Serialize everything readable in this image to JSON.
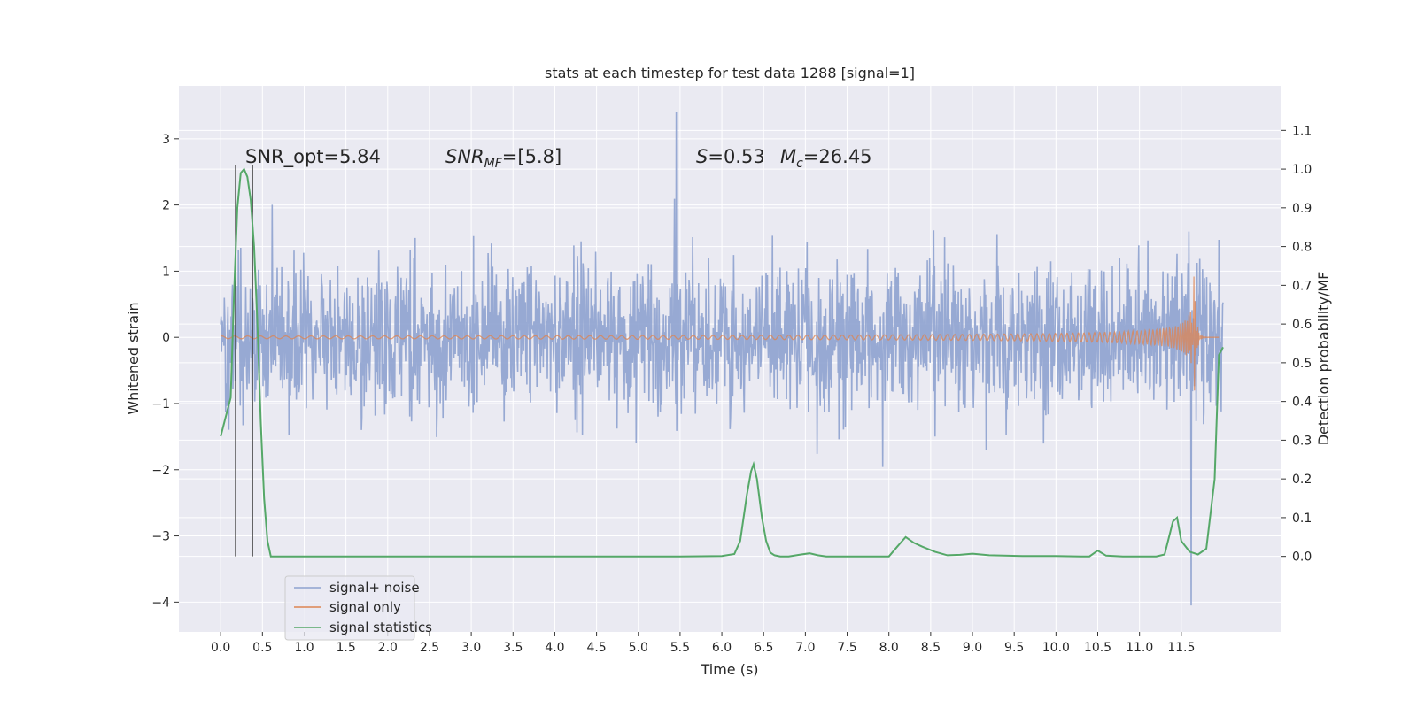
{
  "chart_data": {
    "type": "line",
    "title": "stats at each timestep for test data 1288 [signal=1]",
    "xlabel": "Time (s)",
    "ylabel_left": "Whitened strain",
    "ylabel_right": "Detection probability/MF",
    "xlim": [
      -0.5,
      12.7
    ],
    "ylim_left": [
      -4.45,
      3.8
    ],
    "ylim_right": [
      -0.195,
      1.215
    ],
    "x_ticks": [
      "0.0",
      "0.5",
      "1.0",
      "1.5",
      "2.0",
      "2.5",
      "3.0",
      "3.5",
      "4.0",
      "4.5",
      "5.0",
      "5.5",
      "6.0",
      "6.5",
      "7.0",
      "7.5",
      "8.0",
      "8.5",
      "9.0",
      "9.5",
      "10.0",
      "10.5",
      "11.0",
      "11.5"
    ],
    "y_ticks_left": [
      "3",
      "2",
      "1",
      "0",
      "−1",
      "−2",
      "−3",
      "−4"
    ],
    "y_ticks_right": [
      "1.1",
      "1.0",
      "0.9",
      "0.8",
      "0.7",
      "0.6",
      "0.5",
      "0.4",
      "0.3",
      "0.2",
      "0.1",
      "0.0"
    ],
    "grid": true,
    "legend_position": "lower-left",
    "legend": [
      "signal+ noise",
      "signal only",
      "signal statistics"
    ],
    "colors": {
      "signal_noise": "#8ea2cf",
      "signal_only": "#dd8452",
      "statistics": "#55a868",
      "background": "#eaeaf2",
      "grid": "#ffffff",
      "vlines": "#404040"
    },
    "annotations": {
      "snr_opt": "SNR_opt=5.84",
      "snr_mf_base": "SNR",
      "snr_mf_sub": "MF",
      "snr_mf_rest": "=[5.8]",
      "s_base": "S",
      "s_rest": "=0.53",
      "mc_base": "M",
      "mc_sub": "c",
      "mc_rest": "=26.45"
    },
    "signal_noise": {
      "x_range": [
        0.0,
        12.0
      ],
      "band_typical": [
        -1.45,
        1.45
      ],
      "peak_max": 3.4,
      "peak_min": -4.05
    },
    "signal_only": {
      "x_range": [
        0.0,
        11.95
      ],
      "chirp_peak_time": 11.65,
      "max_amplitude": 1.1
    },
    "vlines_x": [
      0.18,
      0.38
    ],
    "series": [
      {
        "name": "signal statistics",
        "axis": "right",
        "x": [
          0.0,
          0.12,
          0.16,
          0.2,
          0.24,
          0.28,
          0.32,
          0.36,
          0.4,
          0.44,
          0.48,
          0.52,
          0.56,
          0.6,
          0.65,
          0.7,
          1.5,
          3.0,
          4.5,
          5.5,
          6.0,
          6.15,
          6.22,
          6.3,
          6.35,
          6.38,
          6.42,
          6.48,
          6.53,
          6.58,
          6.63,
          6.7,
          6.8,
          6.95,
          7.05,
          7.15,
          7.25,
          7.4,
          7.7,
          8.0,
          8.1,
          8.2,
          8.3,
          8.4,
          8.55,
          8.7,
          8.85,
          9.0,
          9.2,
          9.6,
          10.0,
          10.3,
          10.4,
          10.5,
          10.6,
          10.8,
          11.0,
          11.2,
          11.3,
          11.4,
          11.45,
          11.5,
          11.6,
          11.7,
          11.8,
          11.9,
          11.95,
          12.0
        ],
        "values": [
          0.31,
          0.41,
          0.68,
          0.9,
          0.99,
          1.0,
          0.98,
          0.92,
          0.8,
          0.6,
          0.35,
          0.15,
          0.04,
          0.0,
          0.0,
          0.0,
          0.0,
          0.0,
          0.0,
          0.0,
          0.001,
          0.006,
          0.04,
          0.16,
          0.22,
          0.238,
          0.2,
          0.1,
          0.04,
          0.01,
          0.003,
          0.0,
          0.0,
          0.005,
          0.008,
          0.003,
          0.0,
          0.0,
          0.0,
          0.0,
          0.025,
          0.05,
          0.035,
          0.025,
          0.012,
          0.003,
          0.004,
          0.007,
          0.003,
          0.001,
          0.001,
          0.0,
          0.0,
          0.015,
          0.002,
          0.0,
          0.0,
          0.0,
          0.005,
          0.09,
          0.1,
          0.04,
          0.012,
          0.005,
          0.02,
          0.2,
          0.52,
          0.54
        ]
      }
    ]
  }
}
